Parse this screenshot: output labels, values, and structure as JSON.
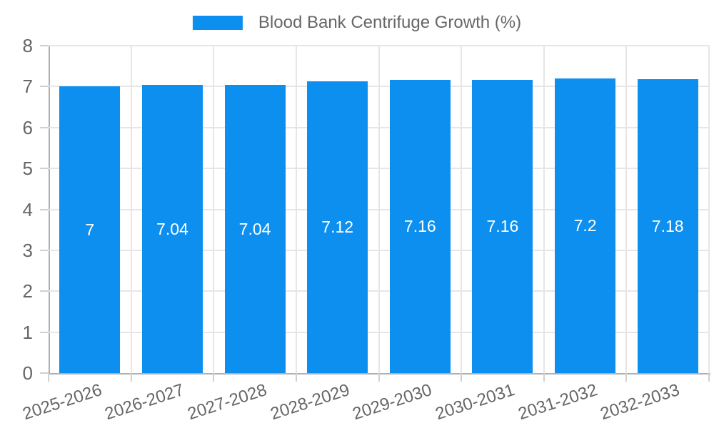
{
  "legend": {
    "label": "Blood Bank Centrifuge Growth (%)"
  },
  "chart_data": {
    "type": "bar",
    "title": "",
    "categories": [
      "2025-2026",
      "2026-2027",
      "2027-2028",
      "2028-2029",
      "2029-2030",
      "2030-2031",
      "2031-2032",
      "2032-2033"
    ],
    "series": [
      {
        "name": "Blood Bank Centrifuge Growth (%)",
        "values": [
          7,
          7.04,
          7.04,
          7.12,
          7.16,
          7.16,
          7.2,
          7.18
        ]
      }
    ],
    "bar_value_labels": [
      "7",
      "7.04",
      "7.04",
      "7.12",
      "7.16",
      "7.16",
      "7.2",
      "7.18"
    ],
    "xlabel": "",
    "ylabel": "",
    "ylim": [
      0,
      8
    ],
    "yticks": [
      0,
      1,
      2,
      3,
      4,
      5,
      6,
      7,
      8
    ],
    "grid": true,
    "legend_position": "top",
    "colors": {
      "bar": "#0d8ff0",
      "bar_label": "#ffffff",
      "axis_line": "#b0b0b0",
      "gridline": "#e6e6e6",
      "tick": "#d0d0d0",
      "text": "#666666",
      "background": "#ffffff"
    }
  }
}
